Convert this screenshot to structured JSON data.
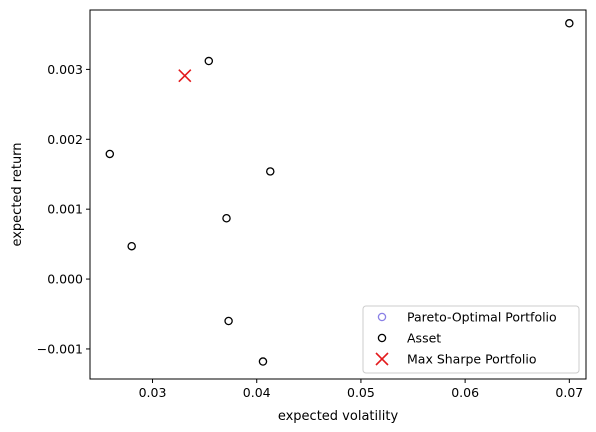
{
  "chart_data": {
    "type": "scatter",
    "title": "",
    "xlabel": "expected volatility",
    "ylabel": "expected return",
    "xlim": [
      0.024,
      0.0716
    ],
    "ylim": [
      -0.00143,
      0.00385
    ],
    "x_ticks": [
      0.03,
      0.04,
      0.05,
      0.06,
      0.07
    ],
    "x_tick_labels": [
      "0.03",
      "0.04",
      "0.05",
      "0.06",
      "0.07"
    ],
    "y_ticks": [
      -0.001,
      0.0,
      0.001,
      0.002,
      0.003
    ],
    "y_tick_labels": [
      "−0.001",
      "0.000",
      "0.001",
      "0.002",
      "0.003"
    ],
    "grid": false,
    "legend_position": "lower-right",
    "series": [
      {
        "name": "Pareto-Optimal Portfolio",
        "marker": "hollow-circle",
        "color": "#8a80e6",
        "points": []
      },
      {
        "name": "Asset",
        "marker": "hollow-circle",
        "color": "#000000",
        "points": [
          {
            "x": 0.07,
            "y": 0.00366
          },
          {
            "x": 0.0354,
            "y": 0.00312
          },
          {
            "x": 0.0259,
            "y": 0.00179
          },
          {
            "x": 0.0413,
            "y": 0.00154
          },
          {
            "x": 0.0371,
            "y": 0.00087
          },
          {
            "x": 0.028,
            "y": 0.00047
          },
          {
            "x": 0.0373,
            "y": -0.0006
          },
          {
            "x": 0.0406,
            "y": -0.00118
          }
        ]
      },
      {
        "name": "Max Sharpe Portfolio",
        "marker": "x",
        "color": "#e31a1c",
        "points": [
          {
            "x": 0.0331,
            "y": 0.00291
          }
        ]
      }
    ]
  }
}
